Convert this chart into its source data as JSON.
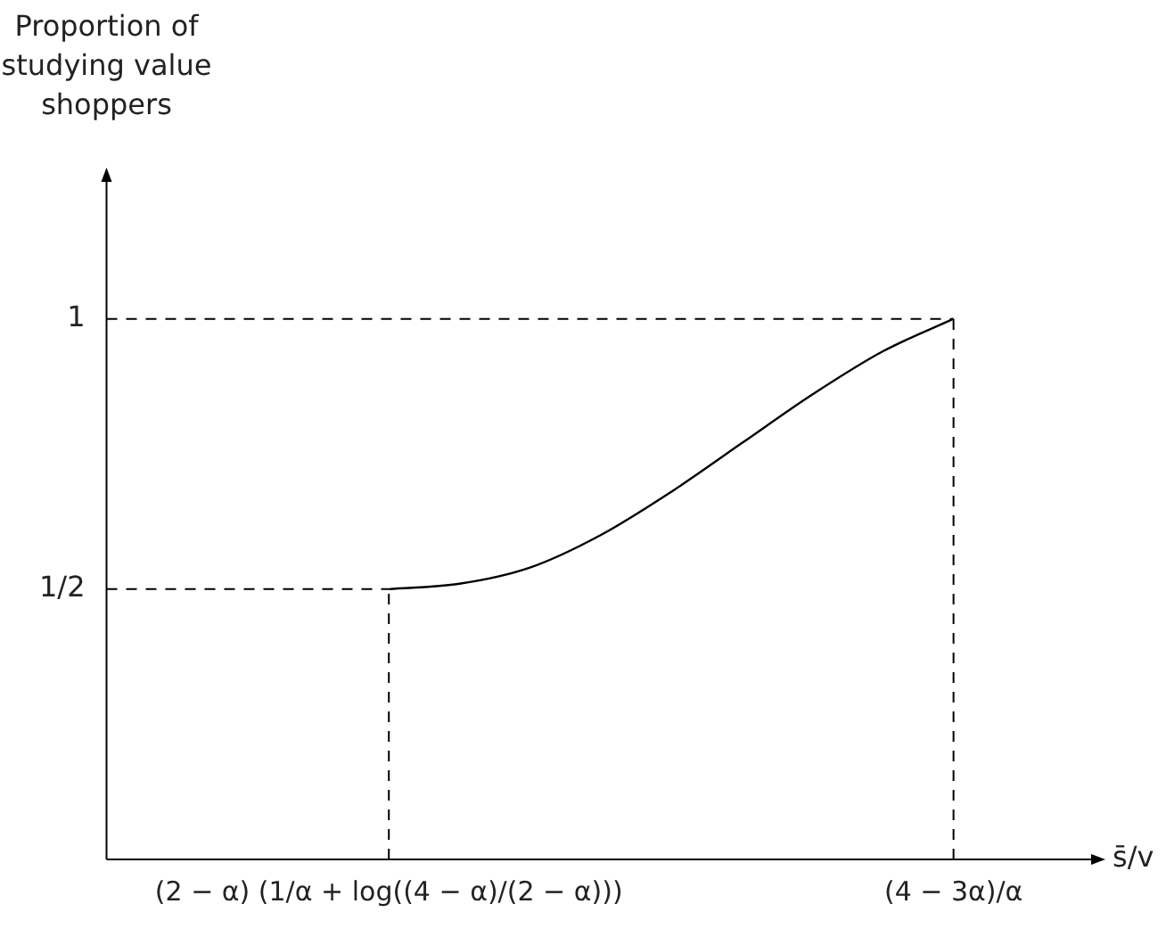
{
  "chart_data": {
    "type": "line",
    "ylabel": "Proportion of studying value shoppers",
    "xlabel": "s̄/v",
    "categories": [
      null,
      null,
      null,
      null,
      "(2 − α) (1/α + log((4 − α)/(2 − α)))",
      null,
      null,
      null,
      null,
      null,
      null,
      null,
      "(4 − 3α)/α",
      null,
      null
    ],
    "series": [
      {
        "color": "#000000",
        "values": [
          null,
          null,
          null,
          null,
          0.5,
          0.51,
          0.54,
          0.6,
          0.68,
          0.77,
          0.86,
          0.94,
          1,
          null,
          null
        ]
      }
    ],
    "ylim": [
      0,
      1.26
    ],
    "yticks": [
      {
        "value": 0.5,
        "label": "1/2"
      },
      {
        "value": 1,
        "label": "1"
      }
    ],
    "ref_lines": [
      {
        "axis": "y",
        "value": 0.5,
        "line_style": "dashed"
      },
      {
        "axis": "y",
        "value": 1,
        "line_style": "dashed"
      },
      {
        "axis": "x",
        "value": "(2 − α) (1/α + log((4 − α)/(2 − α)))",
        "line_style": "dashed"
      },
      {
        "axis": "x",
        "value": "(4 − 3α)/α",
        "line_style": "dashed"
      }
    ],
    "grid": false,
    "legend": false,
    "marker": "none",
    "line_style": "solid"
  }
}
